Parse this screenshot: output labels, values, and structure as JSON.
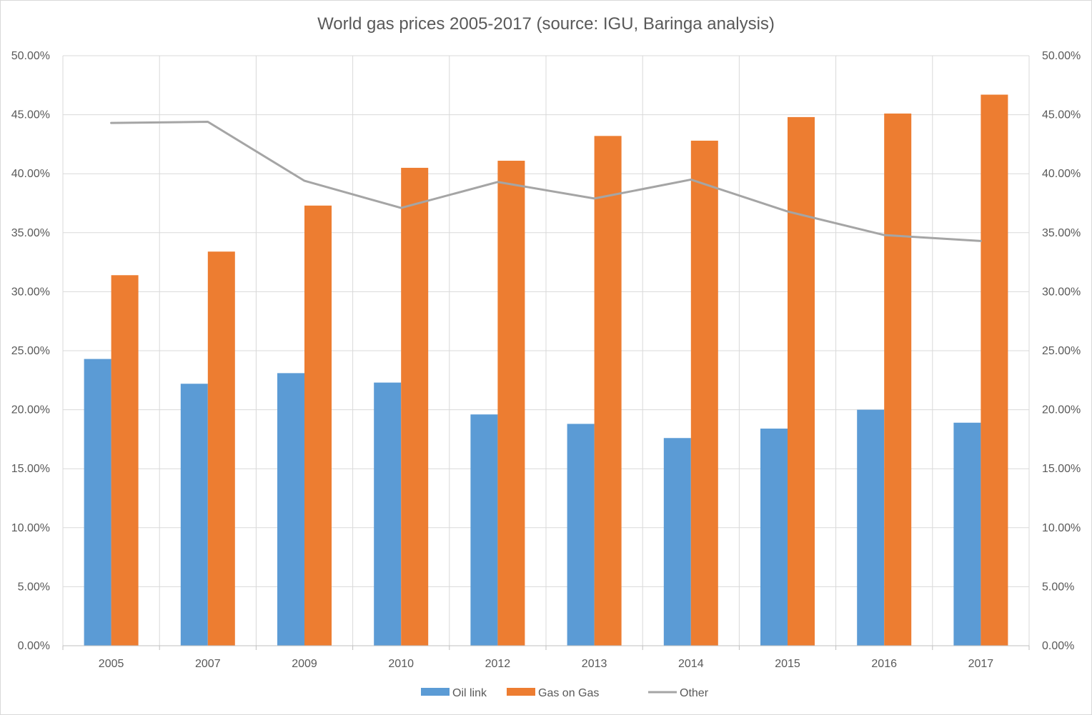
{
  "chart_data": {
    "type": "bar",
    "title": "World gas prices 2005-2017 (source: IGU, Baringa analysis)",
    "xlabel": "",
    "ylabel": "",
    "categories": [
      "2005",
      "2007",
      "2009",
      "2010",
      "2012",
      "2013",
      "2014",
      "2015",
      "2016",
      "2017"
    ],
    "series": [
      {
        "name": "Oil link",
        "type": "bar",
        "axis": "left",
        "color": "#5b9bd5",
        "values": [
          24.3,
          22.2,
          23.1,
          22.3,
          19.6,
          18.8,
          17.6,
          18.4,
          20.0,
          18.9
        ]
      },
      {
        "name": "Gas on Gas",
        "type": "bar",
        "axis": "left",
        "color": "#ed7d31",
        "values": [
          31.4,
          33.4,
          37.3,
          40.5,
          41.1,
          43.2,
          42.8,
          44.8,
          45.1,
          46.7
        ]
      },
      {
        "name": "Other",
        "type": "line",
        "axis": "right",
        "color": "#a5a5a5",
        "values": [
          44.3,
          44.4,
          39.4,
          37.1,
          39.3,
          37.9,
          39.5,
          36.8,
          34.8,
          34.3
        ]
      }
    ],
    "ylim": [
      0,
      50
    ],
    "y2lim": [
      0,
      50
    ],
    "yticks": [
      "0.00%",
      "5.00%",
      "10.00%",
      "15.00%",
      "20.00%",
      "25.00%",
      "30.00%",
      "35.00%",
      "40.00%",
      "45.00%",
      "50.00%"
    ],
    "y2ticks": [
      "0.00%",
      "5.00%",
      "10.00%",
      "15.00%",
      "20.00%",
      "25.00%",
      "30.00%",
      "35.00%",
      "40.00%",
      "45.00%",
      "50.00%"
    ],
    "grid": true,
    "legend": "bottom"
  }
}
